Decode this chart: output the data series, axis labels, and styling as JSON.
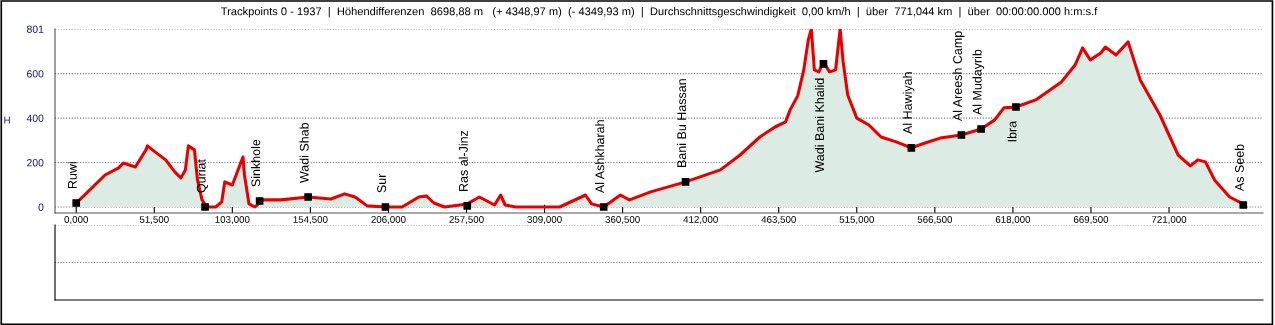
{
  "chart_data": {
    "type": "area",
    "title": "Trackpoints 0 - 1937  |  Höhendifferenzen  8698,88 m   (+ 4348,97 m)  (- 4349,93 m)  |  Durchschnittsgeschwindigkeit  0,00 km/h  |  über  771,044 km  |  über  00:00:00.000 h:m:s.f",
    "ylabel": "H",
    "x": [
      0,
      9,
      19,
      28,
      31,
      39,
      46,
      47,
      52,
      59,
      65,
      69,
      72,
      74,
      78,
      80,
      83,
      86,
      92,
      96,
      98,
      103,
      108,
      110,
      111,
      114,
      118,
      123,
      135,
      153,
      168,
      177,
      184,
      192,
      204,
      215,
      226,
      231,
      236,
      243,
      258,
      266,
      276,
      280,
      283,
      290,
      306,
      319,
      336,
      340,
      348,
      359,
      365,
      379,
      402,
      425,
      438,
      451,
      461,
      468,
      471,
      476,
      480,
      483,
      485,
      487,
      490,
      493,
      497,
      501,
      504,
      506,
      509,
      515,
      523,
      531,
      541,
      551,
      560,
      570,
      584,
      597,
      606,
      612,
      620,
      633,
      650,
      659,
      664,
      669,
      676,
      679,
      686,
      694,
      702,
      715,
      727,
      735,
      740,
      745,
      751,
      761,
      770
    ],
    "series": [
      {
        "color": "#e80000",
        "values": [
          18,
          77,
          144,
          176,
          198,
          180,
          257,
          275,
          248,
          212,
          158,
          131,
          167,
          275,
          257,
          122,
          32,
          0,
          0,
          23,
          113,
          99,
          189,
          225,
          144,
          14,
          0,
          32,
          32,
          45,
          36,
          59,
          45,
          5,
          0,
          0,
          45,
          50,
          18,
          0,
          14,
          45,
          9,
          54,
          9,
          0,
          0,
          0,
          54,
          14,
          0,
          54,
          32,
          68,
          113,
          167,
          234,
          315,
          360,
          383,
          437,
          500,
          617,
          752,
          801,
          617,
          608,
          653,
          608,
          617,
          801,
          653,
          504,
          400,
          369,
          315,
          293,
          266,
          288,
          310,
          324,
          351,
          392,
          446,
          450,
          482,
          563,
          639,
          716,
          662,
          693,
          720,
          684,
          743,
          572,
          414,
          234,
          185,
          212,
          203,
          122,
          45,
          14
        ]
      }
    ],
    "annotations": [
      {
        "text": "Ruwi",
        "x": 0,
        "y": 18
      },
      {
        "text": "Quriat",
        "x": 85,
        "y": 0
      },
      {
        "text": "Sinkhole",
        "x": 121,
        "y": 27
      },
      {
        "text": "Wadi Shab",
        "x": 153,
        "y": 45
      },
      {
        "text": "Sur",
        "x": 204,
        "y": 0
      },
      {
        "text": "Ras al-Jinz",
        "x": 258,
        "y": 5
      },
      {
        "text": "Al Ashkharah",
        "x": 348,
        "y": 0
      },
      {
        "text": "Bani Bu Hassan",
        "x": 402,
        "y": 113
      },
      {
        "text": "Wadi Bani Khalid",
        "x": 493,
        "y": 644
      },
      {
        "text": "Al Hawiyah",
        "x": 551,
        "y": 266
      },
      {
        "text": "Al Areesh Camp",
        "x": 584,
        "y": 324
      },
      {
        "text": "Al Mudayrib",
        "x": 597,
        "y": 351
      },
      {
        "text": "Ibra",
        "x": 620,
        "y": 450
      },
      {
        "text": "As Seeb",
        "x": 770,
        "y": 9
      }
    ],
    "xlim": [
      -14,
      783
    ],
    "xticks": [
      {
        "value": 0,
        "label": "0,000"
      },
      {
        "value": 51.5,
        "label": "51,500"
      },
      {
        "value": 103,
        "label": "103,000"
      },
      {
        "value": 154.5,
        "label": "154,500"
      },
      {
        "value": 206,
        "label": "206,000"
      },
      {
        "value": 257.5,
        "label": "257,500"
      },
      {
        "value": 309,
        "label": "309,000"
      },
      {
        "value": 360.5,
        "label": "360,500"
      },
      {
        "value": 412,
        "label": "412,000"
      },
      {
        "value": 463.5,
        "label": "463,500"
      },
      {
        "value": 515,
        "label": "515,000"
      },
      {
        "value": 566.5,
        "label": "566,500"
      },
      {
        "value": 618,
        "label": "618,000"
      },
      {
        "value": 669.5,
        "label": "669,500"
      },
      {
        "value": 721,
        "label": "721,000"
      }
    ],
    "ylim": [
      -27,
      801
    ],
    "yticks": [
      0,
      200,
      400,
      600,
      801
    ],
    "grid": "y"
  }
}
